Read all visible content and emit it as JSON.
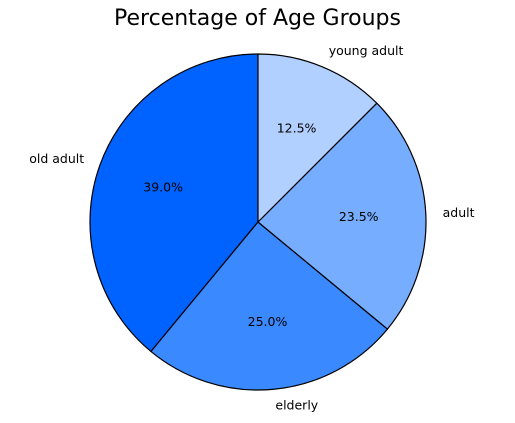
{
  "chart_data": {
    "type": "pie",
    "title": "Percentage of Age Groups",
    "start_angle_deg": 90,
    "direction": "counterclockwise",
    "slices": [
      {
        "label": "old adult",
        "value": 39.0,
        "pct_text": "39.0%",
        "color": "#0063ff"
      },
      {
        "label": "elderly",
        "value": 25.0,
        "pct_text": "25.0%",
        "color": "#3a89ff"
      },
      {
        "label": "adult",
        "value": 23.5,
        "pct_text": "23.5%",
        "color": "#76adff"
      },
      {
        "label": "young adult",
        "value": 12.5,
        "pct_text": "12.5%",
        "color": "#b2d0ff"
      }
    ],
    "edge_color": "#000000"
  }
}
